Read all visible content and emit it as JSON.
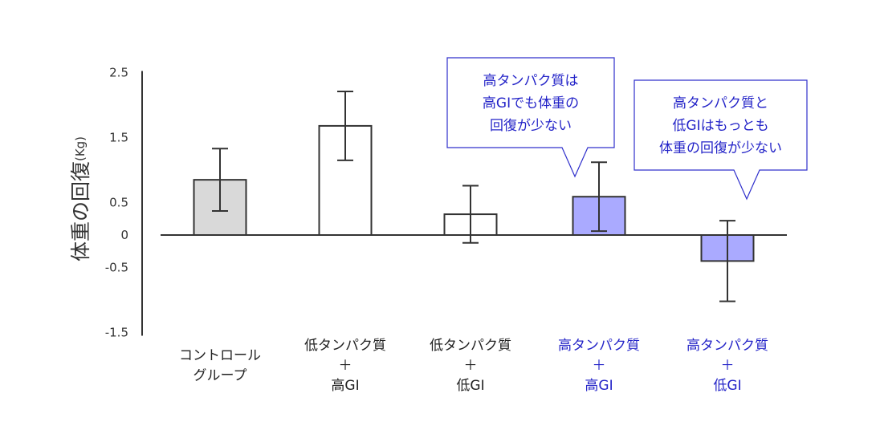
{
  "chart_data": {
    "type": "bar",
    "ylabel": "体重の回復",
    "ylabel_unit": "(Kg)",
    "ylim": [
      -1.5,
      2.5
    ],
    "yticks": [
      2.5,
      1.5,
      0.5,
      0,
      -0.5,
      -1.5
    ],
    "grid": false,
    "categories": [
      [
        "コントロール",
        "グループ"
      ],
      [
        "低タンパク質",
        "＋",
        "高GI"
      ],
      [
        "低タンパク質",
        "＋",
        "低GI"
      ],
      [
        "高タンパク質",
        "＋",
        "高GI"
      ],
      [
        "高タンパク質",
        "＋",
        "低GI"
      ]
    ],
    "values": [
      0.85,
      1.68,
      0.32,
      0.59,
      -0.4
    ],
    "errors": [
      0.48,
      0.53,
      0.44,
      0.53,
      0.62
    ],
    "bar_colors": [
      "#d9d9d9",
      "#ffffff",
      "#ffffff",
      "#aaaaff",
      "#aaaaff"
    ],
    "label_colors": [
      "#222222",
      "#222222",
      "#222222",
      "#2424c8",
      "#2424c8"
    ],
    "annotations": [
      {
        "lines": [
          "高タンパク質は",
          "高GIでも体重の",
          "回復が少ない"
        ]
      },
      {
        "lines": [
          "高タンパク質と",
          "低GIはもっとも",
          "体重の回復が少ない"
        ]
      }
    ]
  },
  "colors": {
    "accent_blue": "#2424c8",
    "callout_border": "#3030cc",
    "axis": "#333333",
    "tick_text": "#333333"
  }
}
